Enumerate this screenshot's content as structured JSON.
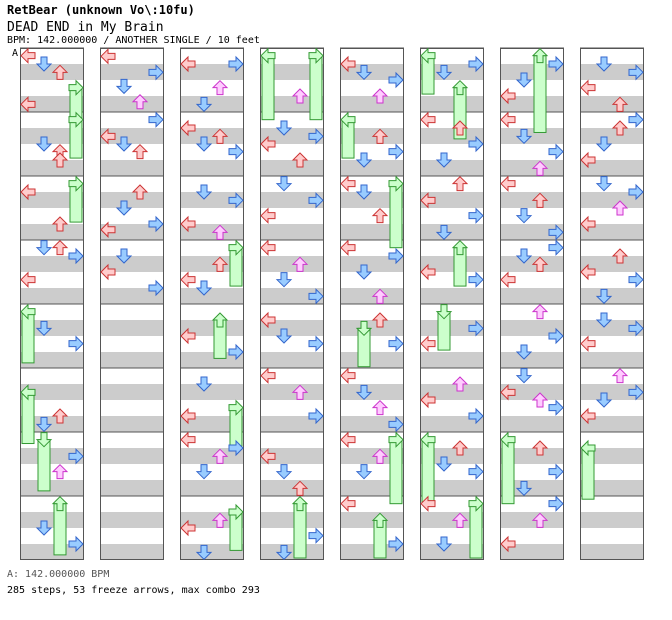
{
  "header": {
    "title": "RetBear (unknown Vo\\:10fu)",
    "song": "DEAD END in My Brain",
    "info": "BPM: 142.000000 / ANOTHER SINGLE / 10 feet"
  },
  "bpm_marker": "A",
  "footer": {
    "bpm_line": "A: 142.000000 BPM",
    "stats_line": "285 steps, 53 freeze arrows, max combo 293"
  },
  "colors": {
    "stripe": "#cccccc",
    "red_arrow": "#ffcccc",
    "red_stroke": "#cc3333",
    "blue_arrow": "#99ccff",
    "blue_stroke": "#3366cc",
    "pink_arrow": "#ffccff",
    "pink_stroke": "#cc33cc",
    "freeze_fill": "#ccffcc",
    "freeze_stroke": "#339933"
  },
  "chart_data": {
    "type": "table",
    "columns": 8,
    "measures_per_column": 8,
    "lanes": [
      "left",
      "down",
      "up",
      "right"
    ],
    "notes": [
      {
        "m": 8,
        "lane": 0,
        "pos": 0.13
      },
      {
        "m": 8,
        "lane": 3,
        "pos": 0.38
      },
      {
        "m": 8,
        "lane": 1,
        "pos": 0.6
      },
      {
        "m": 8,
        "lane": 2,
        "pos": 0.84
      },
      {
        "m": 9,
        "lane": 3,
        "pos": 0.12
      },
      {
        "m": 9,
        "lane": 0,
        "pos": 0.38
      },
      {
        "m": 9,
        "lane": 1,
        "pos": 0.5
      },
      {
        "m": 9,
        "lane": 2,
        "pos": 0.62
      },
      {
        "m": 10,
        "lane": 2,
        "pos": 0.25
      },
      {
        "m": 10,
        "lane": 1,
        "pos": 0.5
      },
      {
        "m": 10,
        "lane": 0,
        "pos": 0.84
      },
      {
        "m": 10,
        "lane": 3,
        "pos": 0.75
      },
      {
        "m": 11,
        "lane": 1,
        "pos": 0.25
      },
      {
        "m": 11,
        "lane": 0,
        "pos": 0.5
      },
      {
        "m": 11,
        "lane": 3,
        "pos": 0.75
      },
      {
        "m": 0,
        "lane": 0,
        "pos": 0.12
      },
      {
        "m": 0,
        "lane": 1,
        "pos": 0.25
      },
      {
        "m": 0,
        "lane": 2,
        "pos": 0.38
      },
      {
        "m": 0,
        "lane": 3,
        "pos": 0.62,
        "freeze": 0.3
      },
      {
        "m": 0,
        "lane": 0,
        "pos": 0.88
      },
      {
        "m": 1,
        "lane": 3,
        "pos": 0.12,
        "freeze": 0.3
      },
      {
        "m": 1,
        "lane": 1,
        "pos": 0.5
      },
      {
        "m": 1,
        "lane": 2,
        "pos": 0.62
      },
      {
        "m": 1,
        "lane": 2,
        "pos": 0.75
      },
      {
        "m": 2,
        "lane": 3,
        "pos": 0.12,
        "freeze": 0.3
      },
      {
        "m": 2,
        "lane": 0,
        "pos": 0.25
      },
      {
        "m": 2,
        "lane": 2,
        "pos": 0.75
      },
      {
        "m": 3,
        "lane": 1,
        "pos": 0.12
      },
      {
        "m": 3,
        "lane": 2,
        "pos": 0.12
      },
      {
        "m": 3,
        "lane": 3,
        "pos": 0.25
      },
      {
        "m": 3,
        "lane": 0,
        "pos": 0.62
      },
      {
        "m": 4,
        "lane": 0,
        "pos": 0.12,
        "freeze": 0.4
      },
      {
        "m": 4,
        "lane": 1,
        "pos": 0.38
      },
      {
        "m": 4,
        "lane": 3,
        "pos": 0.62
      },
      {
        "m": 5,
        "lane": 0,
        "pos": 0.38,
        "freeze": 0.4
      },
      {
        "m": 5,
        "lane": 2,
        "pos": 0.75
      },
      {
        "m": 5,
        "lane": 1,
        "pos": 0.88
      },
      {
        "m": 6,
        "lane": 1,
        "pos": 0.12,
        "freeze": 0.4
      },
      {
        "m": 6,
        "lane": 3,
        "pos": 0.38
      },
      {
        "m": 6,
        "lane": 2,
        "pos": 0.62
      },
      {
        "m": 7,
        "lane": 2,
        "pos": 0.12,
        "freeze": 0.4
      },
      {
        "m": 7,
        "lane": 1,
        "pos": 0.5
      },
      {
        "m": 7,
        "lane": 3,
        "pos": 0.75
      },
      {
        "m": 16,
        "lane": 1,
        "pos": 0.88
      },
      {
        "m": 16,
        "lane": 0,
        "pos": 0.25
      },
      {
        "m": 16,
        "lane": 2,
        "pos": 0.62
      },
      {
        "m": 16,
        "lane": 3,
        "pos": 0.25
      },
      {
        "m": 17,
        "lane": 0,
        "pos": 0.25
      },
      {
        "m": 17,
        "lane": 1,
        "pos": 0.5
      },
      {
        "m": 17,
        "lane": 2,
        "pos": 0.38
      },
      {
        "m": 17,
        "lane": 3,
        "pos": 0.62
      },
      {
        "m": 18,
        "lane": 1,
        "pos": 0.25
      },
      {
        "m": 18,
        "lane": 3,
        "pos": 0.38
      },
      {
        "m": 18,
        "lane": 0,
        "pos": 0.75
      },
      {
        "m": 18,
        "lane": 2,
        "pos": 0.88
      },
      {
        "m": 19,
        "lane": 3,
        "pos": 0.12,
        "freeze": 0.3
      },
      {
        "m": 19,
        "lane": 2,
        "pos": 0.38
      },
      {
        "m": 19,
        "lane": 0,
        "pos": 0.62
      },
      {
        "m": 19,
        "lane": 1,
        "pos": 0.75
      },
      {
        "m": 20,
        "lane": 2,
        "pos": 0.25,
        "freeze": 0.3
      },
      {
        "m": 20,
        "lane": 0,
        "pos": 0.5
      },
      {
        "m": 20,
        "lane": 3,
        "pos": 0.75
      },
      {
        "m": 21,
        "lane": 1,
        "pos": 0.25
      },
      {
        "m": 21,
        "lane": 0,
        "pos": 0.75
      },
      {
        "m": 21,
        "lane": 3,
        "pos": 0.62,
        "freeze": 0.3
      },
      {
        "m": 22,
        "lane": 0,
        "pos": 0.12
      },
      {
        "m": 22,
        "lane": 2,
        "pos": 0.38
      },
      {
        "m": 22,
        "lane": 3,
        "pos": 0.25
      },
      {
        "m": 22,
        "lane": 1,
        "pos": 0.62
      },
      {
        "m": 23,
        "lane": 2,
        "pos": 0.38
      },
      {
        "m": 23,
        "lane": 0,
        "pos": 0.5
      },
      {
        "m": 23,
        "lane": 3,
        "pos": 0.25,
        "freeze": 0.3
      },
      {
        "m": 23,
        "lane": 1,
        "pos": 0.88
      },
      {
        "m": 24,
        "lane": 0,
        "pos": 0.12,
        "freeze": 0.5
      },
      {
        "m": 24,
        "lane": 3,
        "pos": 0.12,
        "freeze": 0.5
      },
      {
        "m": 24,
        "lane": 2,
        "pos": 0.75
      },
      {
        "m": 25,
        "lane": 1,
        "pos": 0.25
      },
      {
        "m": 25,
        "lane": 3,
        "pos": 0.38
      },
      {
        "m": 25,
        "lane": 0,
        "pos": 0.5
      },
      {
        "m": 25,
        "lane": 2,
        "pos": 0.75
      },
      {
        "m": 26,
        "lane": 1,
        "pos": 0.12
      },
      {
        "m": 26,
        "lane": 3,
        "pos": 0.38
      },
      {
        "m": 26,
        "lane": 0,
        "pos": 0.62
      },
      {
        "m": 27,
        "lane": 0,
        "pos": 0.12
      },
      {
        "m": 27,
        "lane": 2,
        "pos": 0.38
      },
      {
        "m": 27,
        "lane": 1,
        "pos": 0.62
      },
      {
        "m": 27,
        "lane": 3,
        "pos": 0.88
      },
      {
        "m": 28,
        "lane": 0,
        "pos": 0.25
      },
      {
        "m": 28,
        "lane": 1,
        "pos": 0.5
      },
      {
        "m": 28,
        "lane": 3,
        "pos": 0.62
      },
      {
        "m": 29,
        "lane": 2,
        "pos": 0.38
      },
      {
        "m": 29,
        "lane": 0,
        "pos": 0.12
      },
      {
        "m": 29,
        "lane": 3,
        "pos": 0.75
      },
      {
        "m": 30,
        "lane": 0,
        "pos": 0.38
      },
      {
        "m": 30,
        "lane": 1,
        "pos": 0.62
      },
      {
        "m": 30,
        "lane": 2,
        "pos": 0.88
      },
      {
        "m": 31,
        "lane": 2,
        "pos": 0.12,
        "freeze": 0.8
      },
      {
        "m": 31,
        "lane": 1,
        "pos": 0.88
      },
      {
        "m": 31,
        "lane": 3,
        "pos": 0.62
      },
      {
        "m": 32,
        "lane": 0,
        "pos": 0.25
      },
      {
        "m": 32,
        "lane": 1,
        "pos": 0.38
      },
      {
        "m": 32,
        "lane": 3,
        "pos": 0.5
      },
      {
        "m": 32,
        "lane": 2,
        "pos": 0.75
      },
      {
        "m": 33,
        "lane": 0,
        "pos": 0.12,
        "freeze": 0.3
      },
      {
        "m": 33,
        "lane": 2,
        "pos": 0.38
      },
      {
        "m": 33,
        "lane": 3,
        "pos": 0.62
      },
      {
        "m": 33,
        "lane": 1,
        "pos": 0.75
      },
      {
        "m": 34,
        "lane": 0,
        "pos": 0.12
      },
      {
        "m": 34,
        "lane": 1,
        "pos": 0.25
      },
      {
        "m": 34,
        "lane": 3,
        "pos": 0.12,
        "freeze": 0.5
      },
      {
        "m": 34,
        "lane": 2,
        "pos": 0.62
      },
      {
        "m": 35,
        "lane": 0,
        "pos": 0.12
      },
      {
        "m": 35,
        "lane": 1,
        "pos": 0.5
      },
      {
        "m": 35,
        "lane": 3,
        "pos": 0.25
      },
      {
        "m": 35,
        "lane": 2,
        "pos": 0.88
      },
      {
        "m": 36,
        "lane": 1,
        "pos": 0.38,
        "freeze": 0.3
      },
      {
        "m": 36,
        "lane": 2,
        "pos": 0.25
      },
      {
        "m": 36,
        "lane": 3,
        "pos": 0.62
      },
      {
        "m": 37,
        "lane": 0,
        "pos": 0.12
      },
      {
        "m": 37,
        "lane": 1,
        "pos": 0.38
      },
      {
        "m": 37,
        "lane": 2,
        "pos": 0.62
      },
      {
        "m": 37,
        "lane": 3,
        "pos": 0.88
      },
      {
        "m": 38,
        "lane": 0,
        "pos": 0.12
      },
      {
        "m": 38,
        "lane": 2,
        "pos": 0.38
      },
      {
        "m": 38,
        "lane": 1,
        "pos": 0.62
      },
      {
        "m": 38,
        "lane": 3,
        "pos": 0.12,
        "freeze": 0.5
      },
      {
        "m": 39,
        "lane": 0,
        "pos": 0.12
      },
      {
        "m": 39,
        "lane": 2,
        "pos": 0.38,
        "freeze": 0.5
      },
      {
        "m": 39,
        "lane": 3,
        "pos": 0.75
      },
      {
        "m": 40,
        "lane": 0,
        "pos": 0.12,
        "freeze": 0.3
      },
      {
        "m": 40,
        "lane": 3,
        "pos": 0.25
      },
      {
        "m": 40,
        "lane": 1,
        "pos": 0.38
      },
      {
        "m": 40,
        "lane": 2,
        "pos": 0.62,
        "freeze": 0.4
      },
      {
        "m": 41,
        "lane": 0,
        "pos": 0.12
      },
      {
        "m": 41,
        "lane": 2,
        "pos": 0.25
      },
      {
        "m": 41,
        "lane": 3,
        "pos": 0.5
      },
      {
        "m": 41,
        "lane": 1,
        "pos": 0.75
      },
      {
        "m": 42,
        "lane": 2,
        "pos": 0.12
      },
      {
        "m": 42,
        "lane": 0,
        "pos": 0.38
      },
      {
        "m": 42,
        "lane": 3,
        "pos": 0.62
      },
      {
        "m": 42,
        "lane": 1,
        "pos": 0.88
      },
      {
        "m": 43,
        "lane": 2,
        "pos": 0.12,
        "freeze": 0.3
      },
      {
        "m": 43,
        "lane": 0,
        "pos": 0.5
      },
      {
        "m": 43,
        "lane": 3,
        "pos": 0.62
      },
      {
        "m": 44,
        "lane": 1,
        "pos": 0.12,
        "freeze": 0.3
      },
      {
        "m": 44,
        "lane": 3,
        "pos": 0.38
      },
      {
        "m": 44,
        "lane": 0,
        "pos": 0.62
      },
      {
        "m": 45,
        "lane": 2,
        "pos": 0.25
      },
      {
        "m": 45,
        "lane": 0,
        "pos": 0.5
      },
      {
        "m": 45,
        "lane": 3,
        "pos": 0.75
      },
      {
        "m": 46,
        "lane": 0,
        "pos": 0.12,
        "freeze": 0.5
      },
      {
        "m": 46,
        "lane": 2,
        "pos": 0.25
      },
      {
        "m": 46,
        "lane": 1,
        "pos": 0.5
      },
      {
        "m": 46,
        "lane": 3,
        "pos": 0.62
      },
      {
        "m": 47,
        "lane": 0,
        "pos": 0.12
      },
      {
        "m": 47,
        "lane": 3,
        "pos": 0.12,
        "freeze": 0.8
      },
      {
        "m": 47,
        "lane": 2,
        "pos": 0.38
      },
      {
        "m": 47,
        "lane": 1,
        "pos": 0.75
      },
      {
        "m": 48,
        "lane": 2,
        "pos": 0.12,
        "freeze": 0.6
      },
      {
        "m": 48,
        "lane": 3,
        "pos": 0.25
      },
      {
        "m": 48,
        "lane": 1,
        "pos": 0.5
      },
      {
        "m": 48,
        "lane": 0,
        "pos": 0.75
      },
      {
        "m": 49,
        "lane": 0,
        "pos": 0.12
      },
      {
        "m": 49,
        "lane": 1,
        "pos": 0.38
      },
      {
        "m": 49,
        "lane": 3,
        "pos": 0.62
      },
      {
        "m": 49,
        "lane": 2,
        "pos": 0.88
      },
      {
        "m": 50,
        "lane": 0,
        "pos": 0.12
      },
      {
        "m": 50,
        "lane": 2,
        "pos": 0.38
      },
      {
        "m": 50,
        "lane": 1,
        "pos": 0.62
      },
      {
        "m": 50,
        "lane": 3,
        "pos": 0.88
      },
      {
        "m": 51,
        "lane": 3,
        "pos": 0.12
      },
      {
        "m": 51,
        "lane": 1,
        "pos": 0.25
      },
      {
        "m": 51,
        "lane": 2,
        "pos": 0.38
      },
      {
        "m": 51,
        "lane": 0,
        "pos": 0.62
      },
      {
        "m": 52,
        "lane": 2,
        "pos": 0.12
      },
      {
        "m": 52,
        "lane": 3,
        "pos": 0.5
      },
      {
        "m": 52,
        "lane": 1,
        "pos": 0.75
      },
      {
        "m": 53,
        "lane": 1,
        "pos": 0.12
      },
      {
        "m": 53,
        "lane": 0,
        "pos": 0.38
      },
      {
        "m": 53,
        "lane": 3,
        "pos": 0.62
      },
      {
        "m": 53,
        "lane": 2,
        "pos": 0.5
      },
      {
        "m": 54,
        "lane": 0,
        "pos": 0.12,
        "freeze": 0.5
      },
      {
        "m": 54,
        "lane": 2,
        "pos": 0.25
      },
      {
        "m": 54,
        "lane": 3,
        "pos": 0.62
      },
      {
        "m": 54,
        "lane": 1,
        "pos": 0.88
      },
      {
        "m": 55,
        "lane": 3,
        "pos": 0.12
      },
      {
        "m": 55,
        "lane": 2,
        "pos": 0.38
      },
      {
        "m": 55,
        "lane": 0,
        "pos": 0.75
      },
      {
        "m": 56,
        "lane": 1,
        "pos": 0.25
      },
      {
        "m": 56,
        "lane": 3,
        "pos": 0.38
      },
      {
        "m": 56,
        "lane": 0,
        "pos": 0.62
      },
      {
        "m": 56,
        "lane": 2,
        "pos": 0.88
      },
      {
        "m": 57,
        "lane": 3,
        "pos": 0.12
      },
      {
        "m": 57,
        "lane": 2,
        "pos": 0.25
      },
      {
        "m": 57,
        "lane": 1,
        "pos": 0.5
      },
      {
        "m": 57,
        "lane": 0,
        "pos": 0.75
      },
      {
        "m": 58,
        "lane": 1,
        "pos": 0.12
      },
      {
        "m": 58,
        "lane": 3,
        "pos": 0.25
      },
      {
        "m": 58,
        "lane": 2,
        "pos": 0.5
      },
      {
        "m": 58,
        "lane": 0,
        "pos": 0.75
      },
      {
        "m": 59,
        "lane": 2,
        "pos": 0.25
      },
      {
        "m": 59,
        "lane": 0,
        "pos": 0.5
      },
      {
        "m": 59,
        "lane": 3,
        "pos": 0.62
      },
      {
        "m": 59,
        "lane": 1,
        "pos": 0.88
      },
      {
        "m": 60,
        "lane": 1,
        "pos": 0.25
      },
      {
        "m": 60,
        "lane": 3,
        "pos": 0.38
      },
      {
        "m": 60,
        "lane": 0,
        "pos": 0.62
      },
      {
        "m": 61,
        "lane": 2,
        "pos": 0.12
      },
      {
        "m": 61,
        "lane": 3,
        "pos": 0.38
      },
      {
        "m": 61,
        "lane": 1,
        "pos": 0.5
      },
      {
        "m": 61,
        "lane": 0,
        "pos": 0.75
      },
      {
        "m": 62,
        "lane": 0,
        "pos": 0.25,
        "freeze": 0.4
      }
    ]
  }
}
